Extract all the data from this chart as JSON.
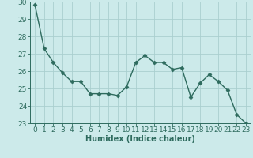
{
  "x": [
    0,
    1,
    2,
    3,
    4,
    5,
    6,
    7,
    8,
    9,
    10,
    11,
    12,
    13,
    14,
    15,
    16,
    17,
    18,
    19,
    20,
    21,
    22,
    23
  ],
  "y": [
    29.8,
    27.3,
    26.5,
    25.9,
    25.4,
    25.4,
    24.7,
    24.7,
    24.7,
    24.6,
    25.1,
    26.5,
    26.9,
    26.5,
    26.5,
    26.1,
    26.2,
    24.5,
    25.3,
    25.8,
    25.4,
    24.9,
    23.5,
    23.0
  ],
  "line_color": "#2e6b5e",
  "marker": "D",
  "marker_size": 2.5,
  "line_width": 1.0,
  "bg_color": "#cceaea",
  "grid_color": "#aacfcf",
  "xlabel": "Humidex (Indice chaleur)",
  "xlabel_fontsize": 7,
  "tick_fontsize": 6.5,
  "ylim": [
    23,
    30
  ],
  "xlim": [
    -0.5,
    23.5
  ],
  "yticks": [
    23,
    24,
    25,
    26,
    27,
    28,
    29,
    30
  ],
  "xticks": [
    0,
    1,
    2,
    3,
    4,
    5,
    6,
    7,
    8,
    9,
    10,
    11,
    12,
    13,
    14,
    15,
    16,
    17,
    18,
    19,
    20,
    21,
    22,
    23
  ]
}
